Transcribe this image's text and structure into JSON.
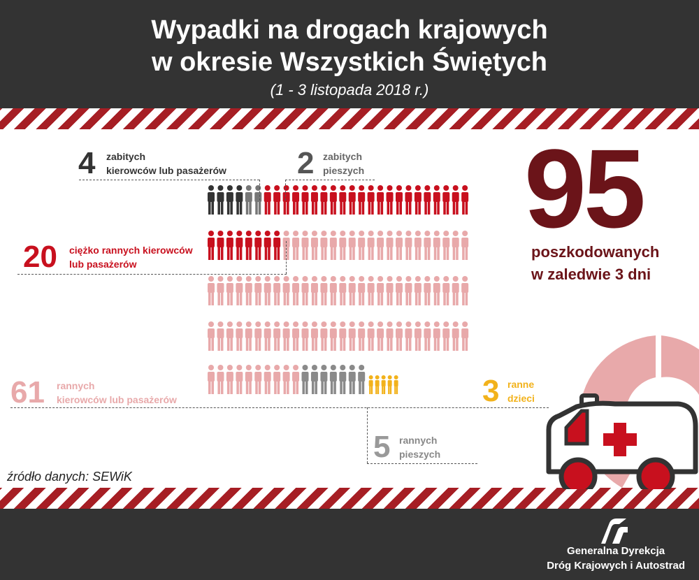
{
  "header": {
    "title_line1": "Wypadki na drogach krajowych",
    "title_line2": "w okresie Wszystkich Świętych",
    "subtitle": "(1 - 3 listopada 2018 r.)"
  },
  "stats": {
    "killed_occupants": {
      "number": "4",
      "line1": "zabitych",
      "line2": "kierowców lub pasażerów",
      "color": "#333333"
    },
    "killed_pedestrians": {
      "number": "2",
      "line1": "zabitych",
      "line2": "pieszych",
      "color": "#666666"
    },
    "seriously_injured": {
      "number": "20",
      "line1": "ciężko rannych kierowców",
      "line2": "lub pasażerów",
      "color": "#c8101e"
    },
    "injured_occupants": {
      "number": "61",
      "line1": "rannych",
      "line2": "kierowców lub pasażerów",
      "color": "#e8a9aa"
    },
    "injured_children": {
      "number": "3",
      "line1": "ranne",
      "line2": "dzieci",
      "color": "#f2b21b"
    },
    "injured_pedestrians": {
      "number": "5",
      "line1": "rannych",
      "line2": "pieszych",
      "color": "#888888"
    }
  },
  "total": {
    "number": "95",
    "line1": "poszkodowanych",
    "line2": "w zaledwie 3 dni",
    "color": "#6b1419"
  },
  "source": "źródło danych: SEWiK",
  "footer": {
    "org_line1": "Generalna Dyrekcja",
    "org_line2": "Dróg Krajowych i Autostrad"
  },
  "colors": {
    "header_bg": "#333333",
    "stripe_red": "#a61e24",
    "dark_red": "#c8101e",
    "light_red": "#e8a9aa",
    "yellow": "#f2b21b"
  }
}
